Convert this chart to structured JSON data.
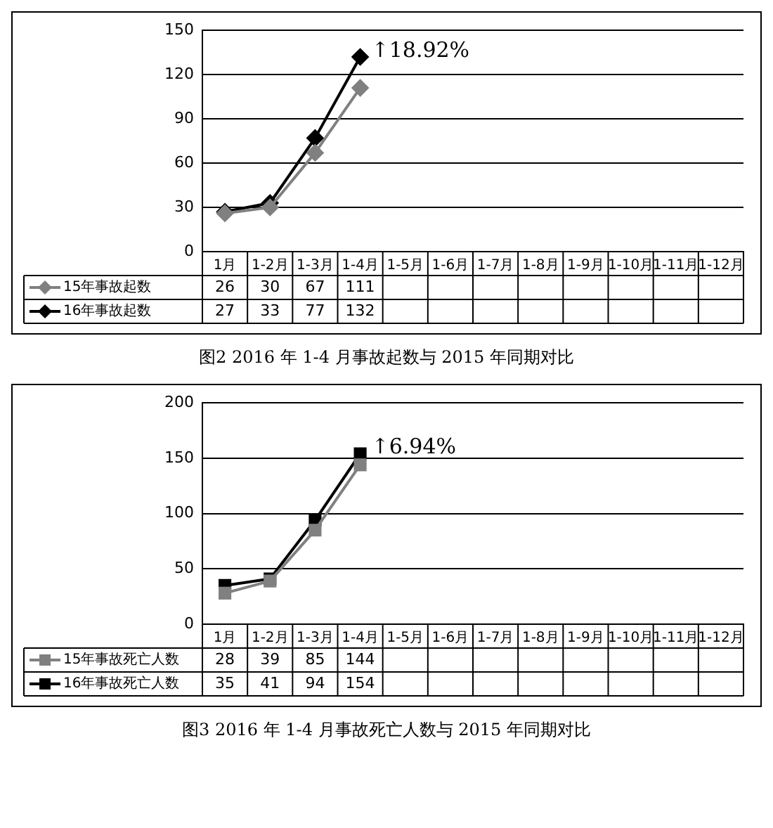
{
  "chart_data": [
    {
      "type": "line",
      "title": "图2  2016 年 1-4 月事故起数与 2015 年同期对比",
      "categories": [
        "1月",
        "1-2月",
        "1-3月",
        "1-4月",
        "1-5月",
        "1-6月",
        "1-7月",
        "1-8月",
        "1-9月",
        "1-10月",
        "1-11月",
        "1-12月"
      ],
      "series": [
        {
          "name": "15年事故起数",
          "color": "#808080",
          "marker": "diamond",
          "values": [
            26,
            30,
            67,
            111,
            null,
            null,
            null,
            null,
            null,
            null,
            null,
            null
          ]
        },
        {
          "name": "16年事故起数",
          "color": "#000000",
          "marker": "diamond",
          "values": [
            27,
            33,
            77,
            132,
            null,
            null,
            null,
            null,
            null,
            null,
            null,
            null
          ]
        }
      ],
      "ylim": [
        0,
        150
      ],
      "yticks": [
        0,
        30,
        60,
        90,
        120,
        150
      ],
      "grid": "y",
      "legend": "bottom",
      "data_labels": true,
      "annotations": [
        {
          "text": "↑18.92%",
          "x": "1-4月",
          "y": 132
        }
      ]
    },
    {
      "type": "line",
      "title": "图3  2016 年 1-4 月事故死亡人数与 2015 年同期对比",
      "categories": [
        "1月",
        "1-2月",
        "1-3月",
        "1-4月",
        "1-5月",
        "1-6月",
        "1-7月",
        "1-8月",
        "1-9月",
        "1-10月",
        "1-11月",
        "1-12月"
      ],
      "series": [
        {
          "name": "15年事故死亡人数",
          "color": "#808080",
          "marker": "square",
          "values": [
            28,
            39,
            85,
            144,
            null,
            null,
            null,
            null,
            null,
            null,
            null,
            null
          ]
        },
        {
          "name": "16年事故死亡人数",
          "color": "#000000",
          "marker": "square",
          "values": [
            35,
            41,
            94,
            154,
            null,
            null,
            null,
            null,
            null,
            null,
            null,
            null
          ]
        }
      ],
      "ylim": [
        0,
        200
      ],
      "yticks": [
        0,
        50,
        100,
        150,
        200
      ],
      "grid": "y",
      "legend": "bottom",
      "data_labels": true,
      "annotations": [
        {
          "text": "↑6.94%",
          "x": "1-4月",
          "y": 154
        }
      ]
    }
  ]
}
